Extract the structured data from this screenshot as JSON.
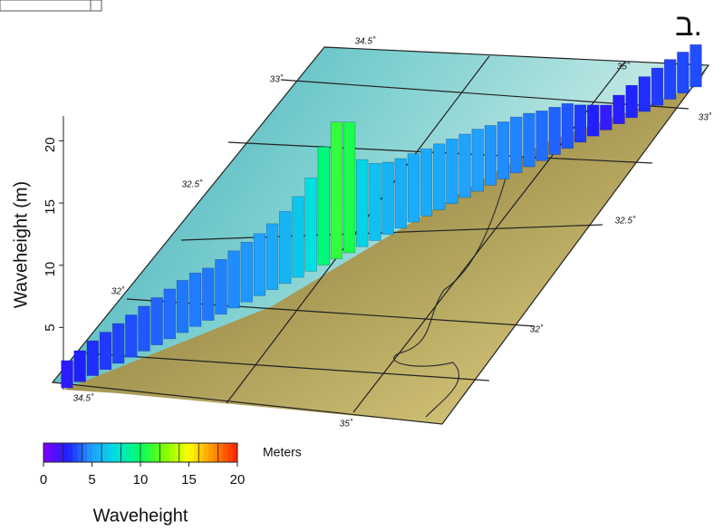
{
  "panel_label": "ב.",
  "chart_data": {
    "type": "bar3d",
    "ylabel": "Waveheight (m)",
    "ylim": [
      0,
      22
    ],
    "yticks": [
      5,
      10,
      15,
      20
    ],
    "values": [
      2.2,
      2.5,
      2.8,
      3.0,
      3.2,
      3.4,
      3.6,
      3.8,
      4.0,
      4.2,
      4.3,
      4.2,
      4.4,
      4.6,
      4.8,
      5.0,
      5.3,
      5.8,
      6.5,
      7.5,
      9.5,
      11.0,
      10.5,
      7.0,
      6.2,
      5.8,
      5.6,
      5.5,
      5.4,
      5.3,
      5.2,
      5.1,
      5.0,
      4.8,
      4.6,
      4.5,
      4.3,
      4.0,
      3.8,
      3.6,
      3.0,
      2.5,
      2.0,
      2.3,
      2.6,
      2.8,
      3.0,
      3.2,
      3.3,
      3.4
    ],
    "map_labels": {
      "longitude_top": [
        "34.5˚",
        "35˚"
      ],
      "longitude_bottom": [
        "34.5˚",
        "35˚"
      ],
      "latitude_left": [
        "33˚",
        "32.5˚",
        "32˚"
      ],
      "latitude_right": [
        "33˚",
        "32.5˚",
        "32˚"
      ]
    },
    "colorbar": {
      "label": "Waveheight",
      "unit": "Meters",
      "lim": [
        0,
        20
      ],
      "ticks": [
        0,
        5,
        10,
        15,
        20
      ],
      "colors": [
        "#8000ff",
        "#2020ff",
        "#20a0ff",
        "#00e0e0",
        "#00ff60",
        "#80ff00",
        "#ffff00",
        "#ff9000",
        "#ff2000"
      ]
    }
  }
}
